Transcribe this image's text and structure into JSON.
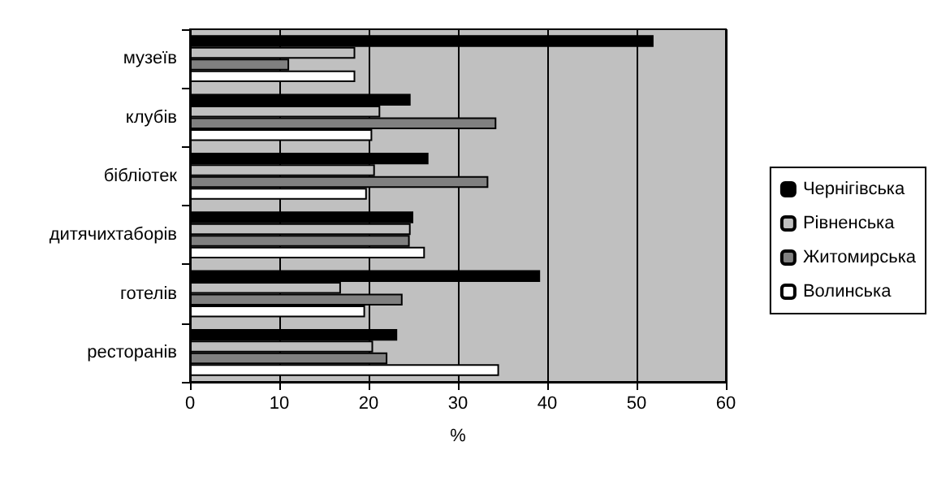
{
  "chart_data": {
    "type": "bar",
    "orientation": "horizontal",
    "xlabel": "%",
    "categories": [
      "музеїв",
      "клубів",
      "бібліотек",
      "дитячихтаборів",
      "готелів",
      "ресторанів"
    ],
    "series": [
      {
        "name": "Чернігівська",
        "color": "#000000",
        "values": [
          51.9,
          24.7,
          26.7,
          25.0,
          39.2,
          23.2
        ]
      },
      {
        "name": "Рівненська",
        "color": "#c0c0c0",
        "values": [
          18.5,
          21.3,
          20.7,
          24.7,
          16.9,
          20.5
        ]
      },
      {
        "name": "Житомирська",
        "color": "#808080",
        "values": [
          11.1,
          34.3,
          33.4,
          24.6,
          23.8,
          22.1
        ]
      },
      {
        "name": "Волинська",
        "color": "#ffffff",
        "values": [
          18.5,
          20.4,
          19.8,
          26.3,
          19.6,
          34.6
        ]
      }
    ],
    "xlim": [
      0,
      60
    ],
    "xticks": [
      0,
      10,
      20,
      30,
      40,
      50,
      60
    ],
    "grid": "x",
    "legend": "right"
  }
}
